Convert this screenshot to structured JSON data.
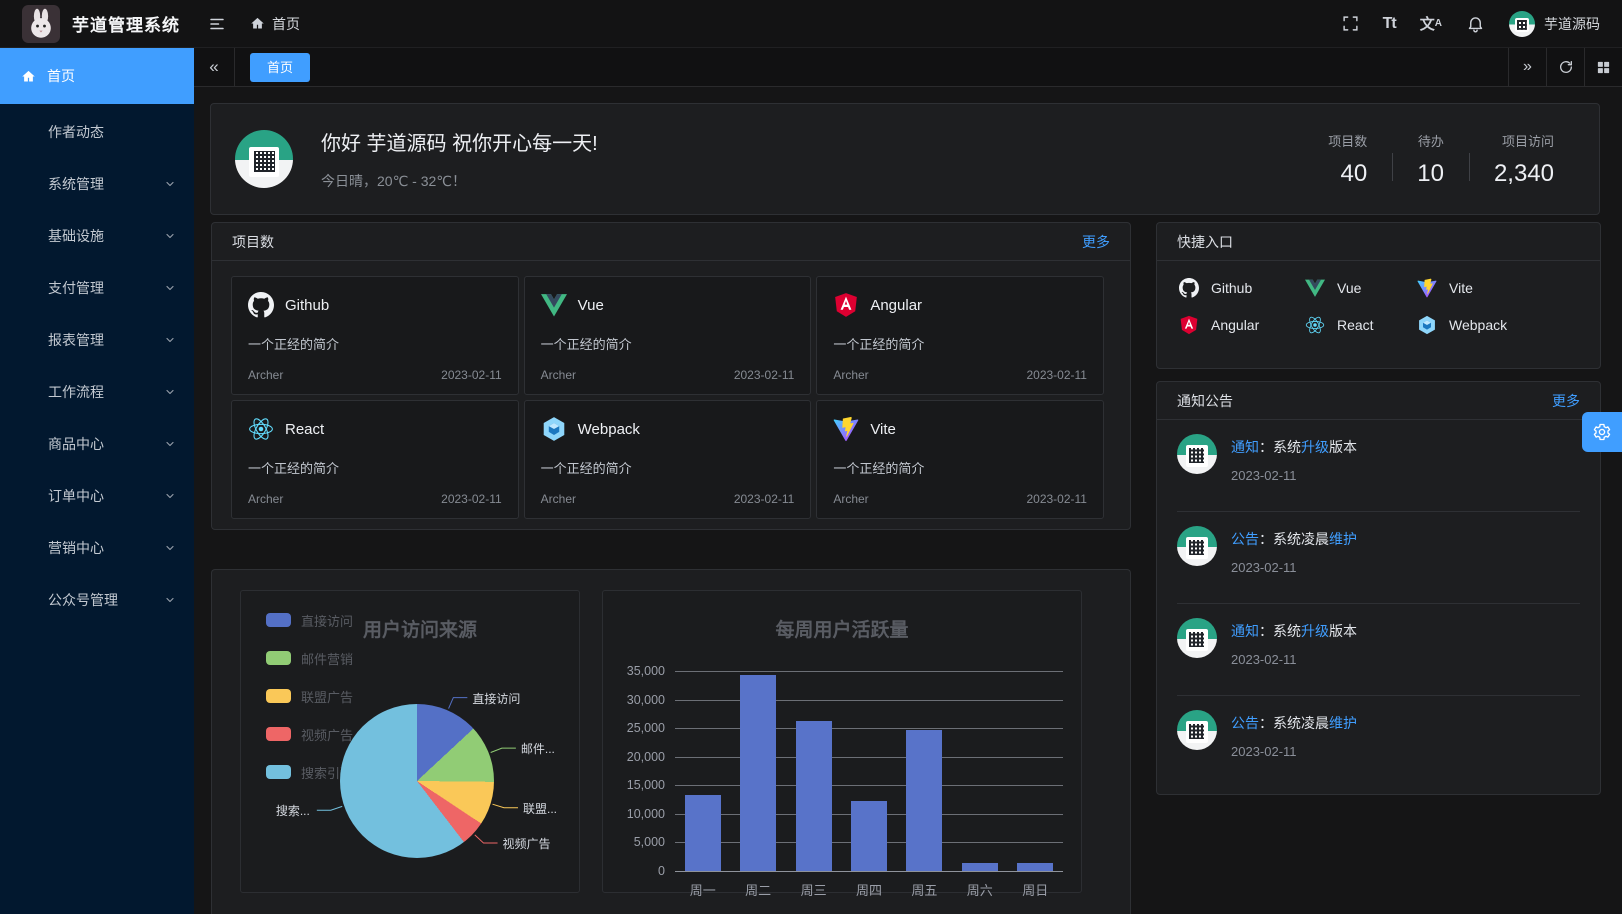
{
  "colors": {
    "accent": "#409eff",
    "sidebar_bg": "#02182f",
    "card_bg": "#1d1e20",
    "bar_color": "#5873c9",
    "pie_colors": [
      "#5470c6",
      "#91cc75",
      "#fac858",
      "#ee6666",
      "#73c0de"
    ]
  },
  "header": {
    "app_title": "芋道管理系统",
    "breadcrumb_home": "首页",
    "user_name": "芋道源码",
    "icon_names": [
      "fullscreen-icon",
      "font-size-icon",
      "locale-icon",
      "bell-icon"
    ],
    "font_size_glyph": "Tt",
    "locale_glyph": "文",
    "locale_glyph_small": "A"
  },
  "sidebar": {
    "active_item": {
      "label": "首页",
      "icon": "home-icon"
    },
    "items": [
      {
        "label": "作者动态",
        "expandable": false
      },
      {
        "label": "系统管理",
        "expandable": true
      },
      {
        "label": "基础设施",
        "expandable": true
      },
      {
        "label": "支付管理",
        "expandable": true
      },
      {
        "label": "报表管理",
        "expandable": true
      },
      {
        "label": "工作流程",
        "expandable": true
      },
      {
        "label": "商品中心",
        "expandable": true
      },
      {
        "label": "订单中心",
        "expandable": true
      },
      {
        "label": "营销中心",
        "expandable": true
      },
      {
        "label": "公众号管理",
        "expandable": true
      }
    ]
  },
  "tabs": {
    "active_label": "首页",
    "collapse_glyph": "«",
    "expand_glyph": "»"
  },
  "greeting": {
    "title": "你好 芋道源码 祝你开心每一天!",
    "subtitle": "今日晴，20℃ - 32℃！",
    "stats": [
      {
        "label": "项目数",
        "value": "40"
      },
      {
        "label": "待办",
        "value": "10"
      },
      {
        "label": "项目访问",
        "value": "2,340"
      }
    ]
  },
  "projects": {
    "title": "项目数",
    "more_label": "更多",
    "items": [
      {
        "name": "Github",
        "icon": "github-icon",
        "desc": "一个正经的简介",
        "author": "Archer",
        "date": "2023-02-11"
      },
      {
        "name": "Vue",
        "icon": "vue-icon",
        "desc": "一个正经的简介",
        "author": "Archer",
        "date": "2023-02-11"
      },
      {
        "name": "Angular",
        "icon": "angular-icon",
        "desc": "一个正经的简介",
        "author": "Archer",
        "date": "2023-02-11"
      },
      {
        "name": "React",
        "icon": "react-icon",
        "desc": "一个正经的简介",
        "author": "Archer",
        "date": "2023-02-11"
      },
      {
        "name": "Webpack",
        "icon": "webpack-icon",
        "desc": "一个正经的简介",
        "author": "Archer",
        "date": "2023-02-11"
      },
      {
        "name": "Vite",
        "icon": "vite-icon",
        "desc": "一个正经的简介",
        "author": "Archer",
        "date": "2023-02-11"
      }
    ]
  },
  "shortcuts": {
    "title": "快捷入口",
    "items": [
      {
        "name": "Github",
        "icon": "github-icon"
      },
      {
        "name": "Vue",
        "icon": "vue-icon"
      },
      {
        "name": "Vite",
        "icon": "vite-icon"
      },
      {
        "name": "Angular",
        "icon": "angular-icon"
      },
      {
        "name": "React",
        "icon": "react-icon"
      },
      {
        "name": "Webpack",
        "icon": "webpack-icon"
      }
    ]
  },
  "notices": {
    "title": "通知公告",
    "more_label": "更多",
    "items": [
      {
        "parts": [
          {
            "t": "通知",
            "hl": true
          },
          {
            "t": "：系统",
            "hl": false
          },
          {
            "t": "升级",
            "hl": true
          },
          {
            "t": "版本",
            "hl": false
          }
        ],
        "date": "2023-02-11"
      },
      {
        "parts": [
          {
            "t": "公告",
            "hl": true
          },
          {
            "t": "：系统凌晨",
            "hl": false
          },
          {
            "t": "维护",
            "hl": true
          }
        ],
        "date": "2023-02-11"
      },
      {
        "parts": [
          {
            "t": "通知",
            "hl": true
          },
          {
            "t": "：系统",
            "hl": false
          },
          {
            "t": "升级",
            "hl": true
          },
          {
            "t": "版本",
            "hl": false
          }
        ],
        "date": "2023-02-11"
      },
      {
        "parts": [
          {
            "t": "公告",
            "hl": true
          },
          {
            "t": "：系统凌晨",
            "hl": false
          },
          {
            "t": "维护",
            "hl": true
          }
        ],
        "date": "2023-02-11"
      }
    ]
  },
  "chart_data": [
    {
      "type": "pie",
      "title": "用户访问来源",
      "legend_position": "left",
      "legend": [
        "直接访问",
        "邮件营销",
        "联盟广告",
        "视频广告",
        "搜索引擎"
      ],
      "series": [
        {
          "name": "直接访问",
          "value": 335
        },
        {
          "name": "邮件营销",
          "value": 310
        },
        {
          "name": "联盟广告",
          "value": 234
        },
        {
          "name": "视频广告",
          "value": 135
        },
        {
          "name": "搜索引擎",
          "value": 1548
        }
      ],
      "display_labels": [
        "直接访问",
        "邮件...",
        "联盟...",
        "视频广告",
        "搜索..."
      ],
      "colors": [
        "#5470c6",
        "#91cc75",
        "#fac858",
        "#ee6666",
        "#73c0de"
      ]
    },
    {
      "type": "bar",
      "title": "每周用户活跃量",
      "categories": [
        "周一",
        "周二",
        "周三",
        "周四",
        "周五",
        "周六",
        "周日"
      ],
      "values": [
        13253,
        34235,
        26321,
        12340,
        24643,
        1322,
        1324
      ],
      "ylim": [
        0,
        35000
      ],
      "ytick_step": 5000,
      "ytick_labels": [
        "0",
        "5,000",
        "10,000",
        "15,000",
        "20,000",
        "25,000",
        "30,000",
        "35,000"
      ],
      "bar_color": "#5873c9",
      "grid": true
    }
  ]
}
